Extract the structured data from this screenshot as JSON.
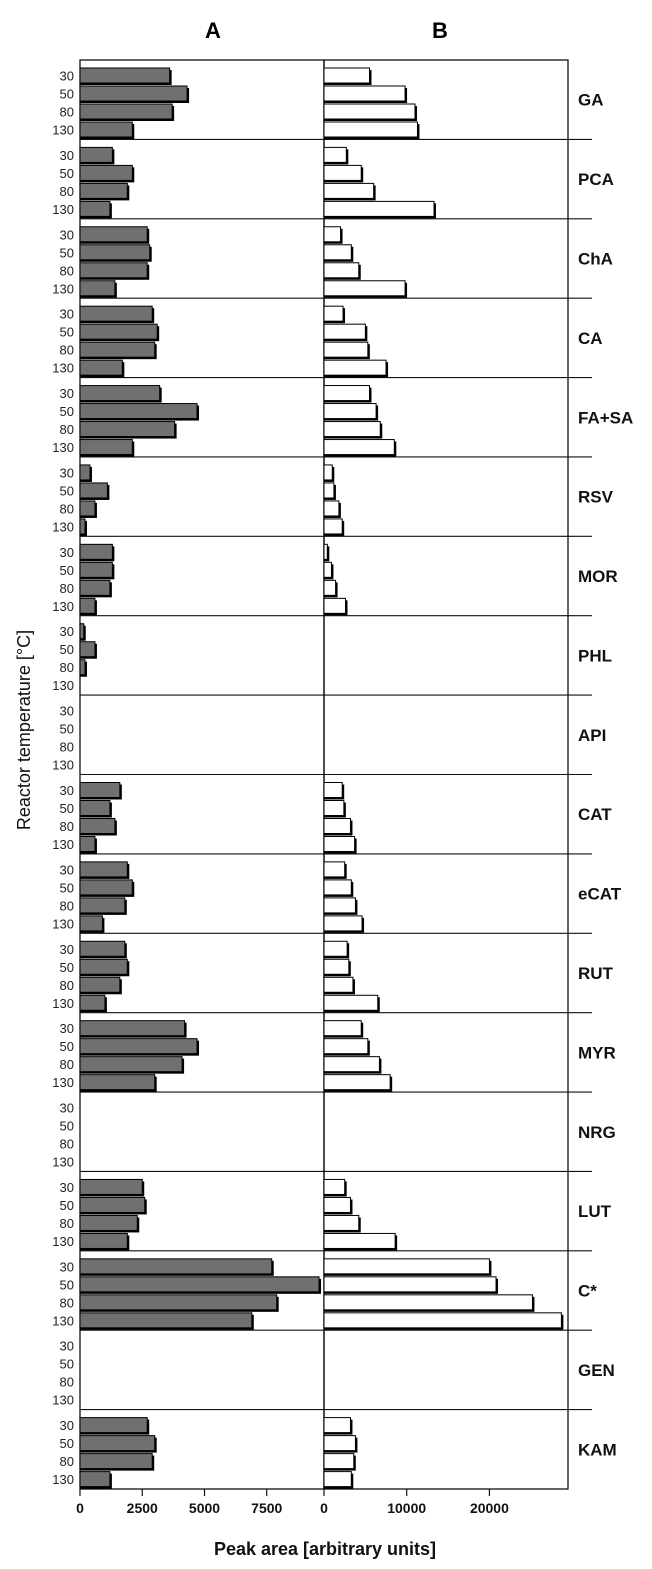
{
  "chart_data": {
    "type": "bar",
    "orientation": "horizontal",
    "panels": [
      {
        "title": "A",
        "xlim": [
          0,
          9800
        ],
        "xticks": [
          "0",
          "2500",
          "5000",
          "7500"
        ],
        "fill": "#707070"
      },
      {
        "title": "B",
        "xlim": [
          0,
          29500
        ],
        "xticks": [
          "0",
          "10000",
          "20000"
        ],
        "fill": "#ffffff"
      }
    ],
    "ylabel": "Reactor temperature [°C]",
    "xlabel": "Peak area [arbitrary units]",
    "temperatures": [
      "30",
      "50",
      "80",
      "130"
    ],
    "compounds": [
      {
        "name": "GA",
        "A": [
          3600,
          4300,
          3700,
          2100
        ],
        "B": [
          5500,
          9800,
          11000,
          11300
        ]
      },
      {
        "name": "PCA",
        "A": [
          1300,
          2100,
          1900,
          1200
        ],
        "B": [
          2700,
          4500,
          6000,
          13300
        ]
      },
      {
        "name": "ChA",
        "A": [
          2700,
          2800,
          2700,
          1400
        ],
        "B": [
          2000,
          3300,
          4200,
          9800
        ]
      },
      {
        "name": "CA",
        "A": [
          2900,
          3100,
          3000,
          1700
        ],
        "B": [
          2300,
          5000,
          5300,
          7500
        ]
      },
      {
        "name": "FA+SA",
        "A": [
          3200,
          4700,
          3800,
          2100
        ],
        "B": [
          5500,
          6300,
          6800,
          8500
        ]
      },
      {
        "name": "RSV",
        "A": [
          400,
          1100,
          600,
          200
        ],
        "B": [
          1000,
          1200,
          1800,
          2200
        ]
      },
      {
        "name": "MOR",
        "A": [
          1300,
          1300,
          1200,
          600
        ],
        "B": [
          400,
          900,
          1400,
          2600
        ]
      },
      {
        "name": "PHL",
        "A": [
          150,
          600,
          200,
          0
        ],
        "B": [
          0,
          0,
          0,
          0
        ]
      },
      {
        "name": "API",
        "A": [
          0,
          0,
          0,
          0
        ],
        "B": [
          0,
          0,
          0,
          0
        ]
      },
      {
        "name": "CAT",
        "A": [
          1600,
          1200,
          1400,
          600
        ],
        "B": [
          2200,
          2400,
          3200,
          3700
        ]
      },
      {
        "name": "eCAT",
        "A": [
          1900,
          2100,
          1800,
          900
        ],
        "B": [
          2500,
          3300,
          3800,
          4600
        ]
      },
      {
        "name": "RUT",
        "A": [
          1800,
          1900,
          1600,
          1000
        ],
        "B": [
          2800,
          3000,
          3500,
          6500
        ]
      },
      {
        "name": "MYR",
        "A": [
          4200,
          4700,
          4100,
          3000
        ],
        "B": [
          4500,
          5300,
          6700,
          8000
        ]
      },
      {
        "name": "NRG",
        "A": [
          0,
          0,
          0,
          0
        ],
        "B": [
          0,
          0,
          0,
          0
        ]
      },
      {
        "name": "LUT",
        "A": [
          2500,
          2600,
          2300,
          1900
        ],
        "B": [
          2500,
          3200,
          4200,
          8600
        ]
      },
      {
        "name": "C*",
        "A": [
          7700,
          9600,
          7900,
          6900
        ],
        "B": [
          20000,
          20800,
          25200,
          28700
        ]
      },
      {
        "name": "GEN",
        "A": [
          0,
          0,
          0,
          0
        ],
        "B": [
          0,
          0,
          0,
          0
        ]
      },
      {
        "name": "KAM",
        "A": [
          2700,
          3000,
          2900,
          1200
        ],
        "B": [
          3200,
          3800,
          3600,
          3300
        ]
      }
    ]
  }
}
